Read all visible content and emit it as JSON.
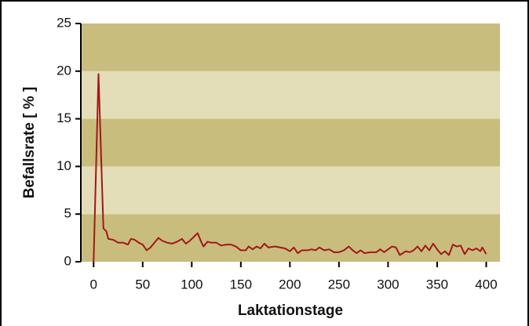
{
  "chart_data": {
    "type": "line",
    "xlabel": "Laktationstage",
    "ylabel": "Befallsrate [ % ]",
    "xlim": [
      -13,
      414
    ],
    "ylim": [
      0,
      25
    ],
    "xticks": [
      0,
      50,
      100,
      150,
      200,
      250,
      300,
      350,
      400
    ],
    "yticks": [
      0,
      5,
      10,
      15,
      20,
      25
    ],
    "band_colors": [
      "#c9bd7e",
      "#e3ddb8"
    ],
    "series": [
      {
        "color": "#a01818",
        "x": [
          0,
          5,
          10,
          13,
          15,
          20,
          25,
          30,
          35,
          38,
          42,
          46,
          50,
          54,
          58,
          62,
          66,
          70,
          75,
          80,
          85,
          90,
          94,
          98,
          102,
          106,
          108,
          110,
          112,
          116,
          120,
          125,
          130,
          135,
          140,
          145,
          150,
          155,
          158,
          162,
          166,
          170,
          174,
          178,
          185,
          190,
          195,
          200,
          204,
          208,
          212,
          218,
          222,
          226,
          230,
          235,
          240,
          245,
          250,
          255,
          260,
          264,
          268,
          272,
          276,
          282,
          288,
          292,
          296,
          300,
          304,
          308,
          312,
          318,
          322,
          326,
          330,
          334,
          338,
          342,
          346,
          350,
          354,
          358,
          362,
          366,
          370,
          374,
          378,
          382,
          386,
          390,
          394,
          396,
          400
        ],
        "values": [
          0,
          19.7,
          3.5,
          3.2,
          2.4,
          2.3,
          2.0,
          2.0,
          1.8,
          2.4,
          2.3,
          2.0,
          1.8,
          1.2,
          1.5,
          2.0,
          2.5,
          2.2,
          2.0,
          1.9,
          2.1,
          2.4,
          1.9,
          2.2,
          2.6,
          3.0,
          2.5,
          2.0,
          1.6,
          2.1,
          2.0,
          2.0,
          1.7,
          1.8,
          1.8,
          1.6,
          1.2,
          1.2,
          1.6,
          1.3,
          1.6,
          1.4,
          1.9,
          1.5,
          1.6,
          1.5,
          1.4,
          1.1,
          1.5,
          0.9,
          1.2,
          1.2,
          1.3,
          1.2,
          1.5,
          1.2,
          1.3,
          1.0,
          1.0,
          1.2,
          1.6,
          1.2,
          0.9,
          1.2,
          0.9,
          1.0,
          1.0,
          1.3,
          1.0,
          1.3,
          1.6,
          1.5,
          0.7,
          1.1,
          1.0,
          1.2,
          1.6,
          1.1,
          1.7,
          1.2,
          1.9,
          1.3,
          0.8,
          1.1,
          0.7,
          1.8,
          1.6,
          1.7,
          0.8,
          1.4,
          1.2,
          1.4,
          1.1,
          1.5,
          0.8
        ]
      }
    ]
  }
}
